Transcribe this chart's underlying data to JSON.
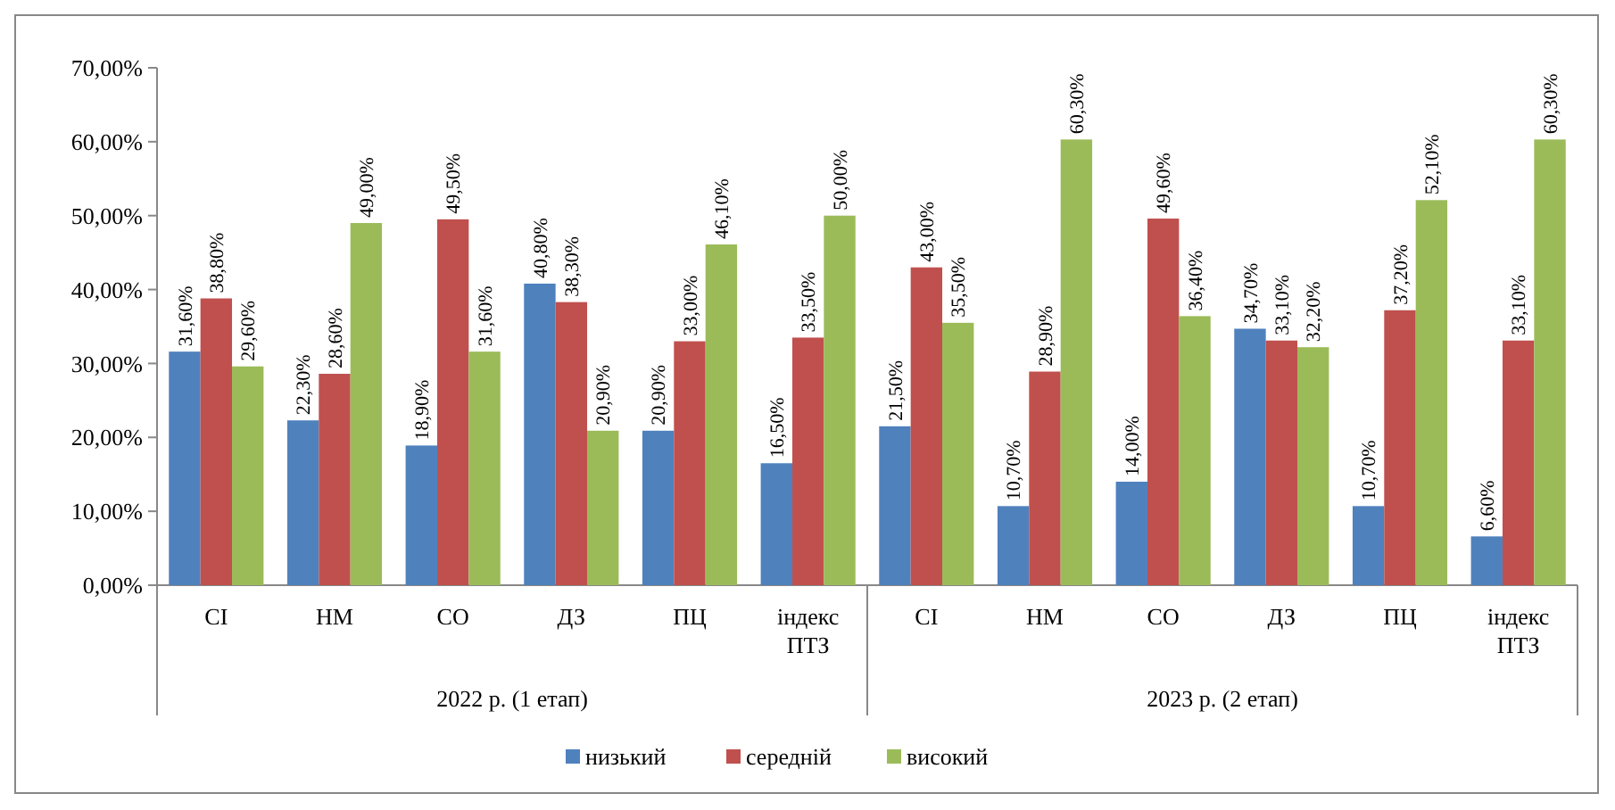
{
  "chart_data": {
    "type": "bar",
    "categories": [
      "СІ",
      "НМ",
      "СО",
      "ДЗ",
      "ПЦ",
      "індекс ПТЗ",
      "СІ",
      "НМ",
      "СО",
      "ДЗ",
      "ПЦ",
      "індекс ПТЗ"
    ],
    "series": [
      {
        "name": "низький",
        "color": "#4f81bd",
        "values": [
          31.6,
          22.3,
          18.9,
          40.8,
          20.9,
          16.5,
          21.5,
          10.7,
          14.0,
          34.7,
          10.7,
          6.6
        ],
        "value_labels": [
          "31,60%",
          "22,30%",
          "18,90%",
          "40,80%",
          "20,90%",
          "16,50%",
          "21,50%",
          "10,70%",
          "14,00%",
          "34,70%",
          "10,70%",
          "6,60%"
        ]
      },
      {
        "name": "середній",
        "color": "#c0504d",
        "values": [
          38.8,
          28.6,
          49.5,
          38.3,
          33.0,
          33.5,
          43.0,
          28.9,
          49.6,
          33.1,
          37.2,
          33.1
        ],
        "value_labels": [
          "38,80%",
          "28,60%",
          "49,50%",
          "38,30%",
          "33,00%",
          "33,50%",
          "43,00%",
          "28,90%",
          "49,60%",
          "33,10%",
          "37,20%",
          "33,10%"
        ]
      },
      {
        "name": "високий",
        "color": "#9bbb59",
        "values": [
          29.6,
          49.0,
          31.6,
          20.9,
          46.1,
          50.0,
          35.5,
          60.3,
          36.4,
          32.2,
          52.1,
          60.3
        ],
        "value_labels": [
          "29,60%",
          "49,00%",
          "31,60%",
          "20,90%",
          "46,10%",
          "50,00%",
          "35,50%",
          "60,30%",
          "36,40%",
          "32,20%",
          "52,10%",
          "60,30%"
        ]
      }
    ],
    "ylim": [
      0,
      70
    ],
    "yticks": [
      {
        "value": 0,
        "label": "0,00%"
      },
      {
        "value": 10,
        "label": "10,00%"
      },
      {
        "value": 20,
        "label": "20,00%"
      },
      {
        "value": 30,
        "label": "30,00%"
      },
      {
        "value": 40,
        "label": "40,00%"
      },
      {
        "value": 50,
        "label": "50,00%"
      },
      {
        "value": 60,
        "label": "60,00%"
      },
      {
        "value": 70,
        "label": "70,00%"
      }
    ],
    "annotations": [
      "2022 р. (1 етап)",
      "2023 р. (2 етап)"
    ],
    "legend": "bottom",
    "grid": false
  }
}
